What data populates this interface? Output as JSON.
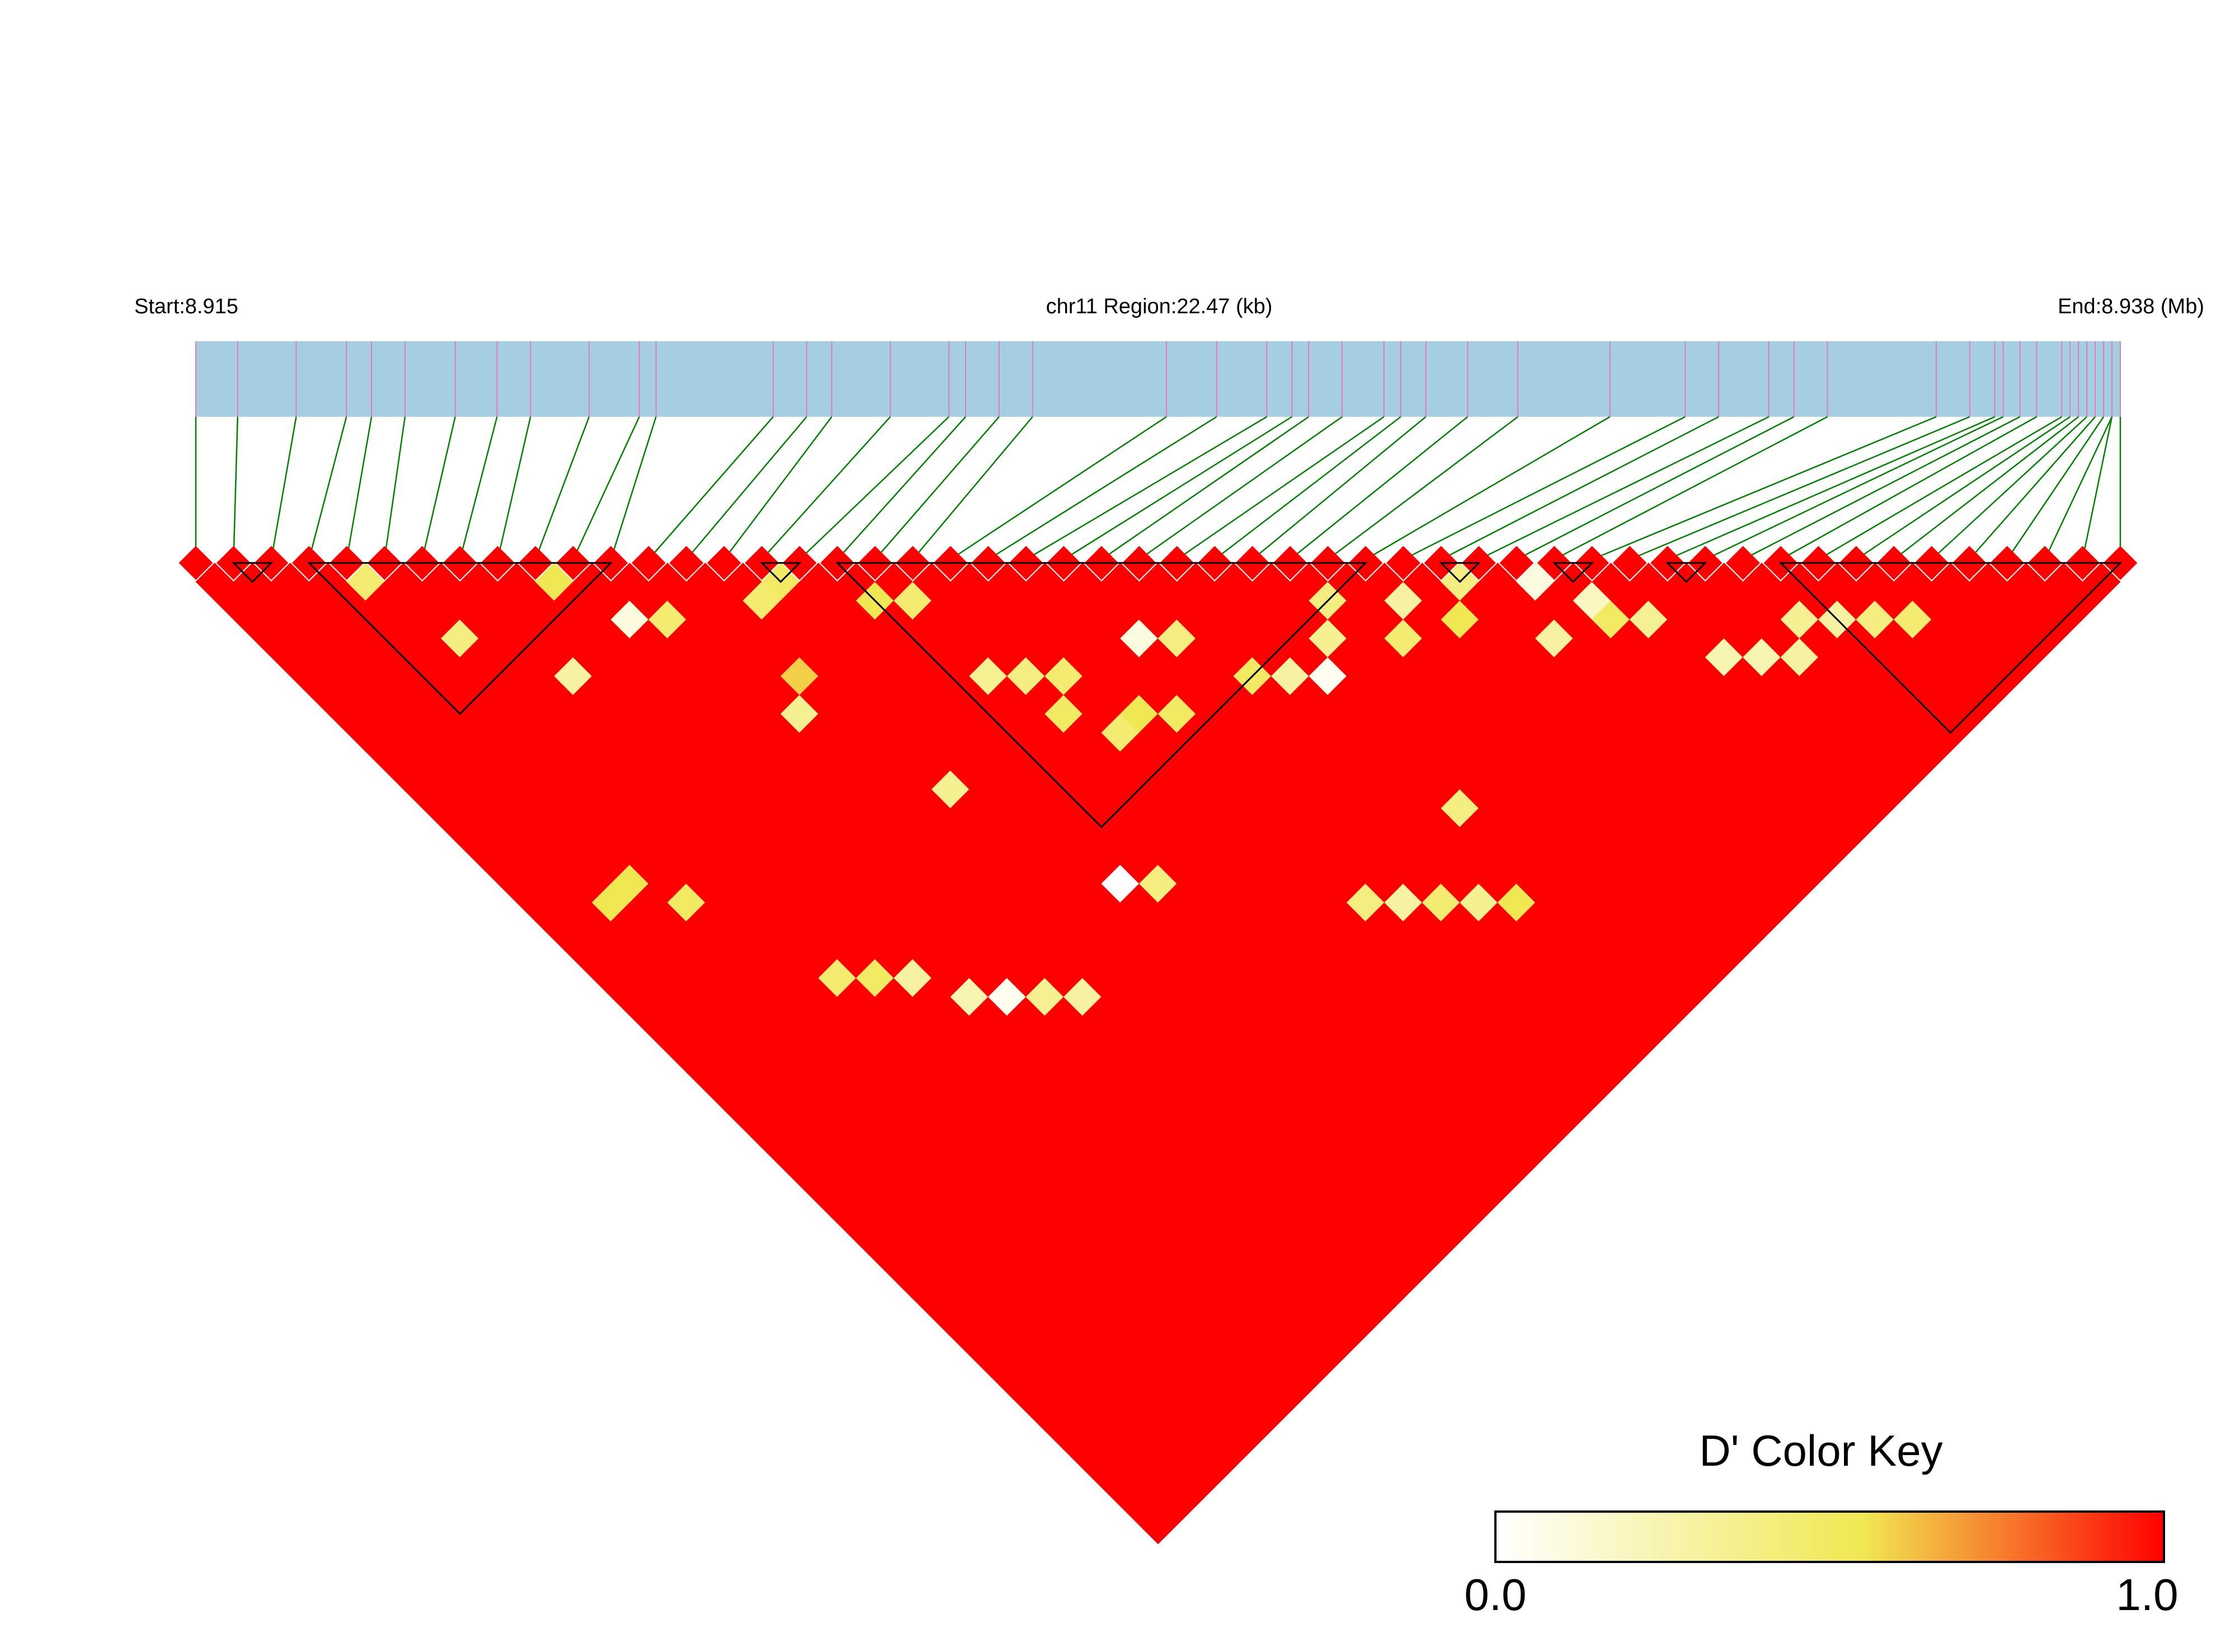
{
  "chart_data": {
    "type": "heatmap",
    "title": "",
    "start_label": "Start:8.915",
    "region_label": "chr11 Region:22.47 (kb)",
    "end_label": "End:8.938 (Mb)",
    "region_start_mb": 8.915,
    "region_end_mb": 8.938,
    "region_kb": 22.47,
    "snp_count": 52,
    "snp_positions_mb": [
      8.915,
      8.9155,
      8.9162,
      8.9168,
      8.9171,
      8.9175,
      8.9181,
      8.9186,
      8.919,
      8.9197,
      8.9203,
      8.9205,
      8.9219,
      8.9223,
      8.9226,
      8.9233,
      8.924,
      8.9242,
      8.9246,
      8.925,
      8.9266,
      8.9272,
      8.9278,
      8.9281,
      8.9283,
      8.9287,
      8.9292,
      8.9294,
      8.9297,
      8.9302,
      8.9308,
      8.9319,
      8.9328,
      8.9332,
      8.9338,
      8.9341,
      8.9345,
      8.9358,
      8.9362,
      8.9365,
      8.9366,
      8.9368,
      8.937,
      8.9373,
      8.9374,
      8.9375,
      8.9376,
      8.9377,
      8.9378,
      8.9379,
      8.9379,
      8.938
    ],
    "blocks": [
      [
        1,
        2
      ],
      [
        3,
        11
      ],
      [
        15,
        16
      ],
      [
        17,
        31
      ],
      [
        33,
        34
      ],
      [
        36,
        37
      ],
      [
        39,
        40
      ],
      [
        42,
        51
      ]
    ],
    "low_ld_pairs": [
      [
        4,
        5,
        0.45
      ],
      [
        5,
        9,
        0.4
      ],
      [
        7,
        13,
        0.3
      ],
      [
        9,
        10,
        0.55
      ],
      [
        10,
        13,
        0.1
      ],
      [
        11,
        14,
        0.45
      ],
      [
        12,
        20,
        0.35
      ],
      [
        14,
        16,
        0.45
      ],
      [
        15,
        16,
        0.5
      ],
      [
        13,
        19,
        0.6
      ],
      [
        14,
        26,
        0.35
      ],
      [
        17,
        19,
        0.55
      ],
      [
        18,
        20,
        0.45
      ],
      [
        16,
        33,
        0.0
      ],
      [
        17,
        34,
        0.4
      ],
      [
        19,
        27,
        0.5
      ],
      [
        20,
        29,
        0.45
      ],
      [
        21,
        29,
        0.55
      ],
      [
        22,
        30,
        0.5
      ],
      [
        23,
        27,
        0.1
      ],
      [
        24,
        28,
        0.4
      ],
      [
        25,
        31,
        0.5
      ],
      [
        26,
        32,
        0.3
      ],
      [
        27,
        33,
        0.05
      ],
      [
        28,
        32,
        0.35
      ],
      [
        29,
        31,
        0.4
      ],
      [
        30,
        34,
        0.45
      ],
      [
        31,
        33,
        0.3
      ],
      [
        32,
        35,
        0.55
      ],
      [
        33,
        34,
        0.4
      ],
      [
        34,
        38,
        0.3
      ],
      [
        35,
        36,
        0.1
      ],
      [
        36,
        38,
        0.2
      ],
      [
        37,
        40,
        0.35
      ],
      [
        38,
        43,
        0.25
      ],
      [
        39,
        44,
        0.25
      ],
      [
        40,
        45,
        0.3
      ],
      [
        41,
        44,
        0.35
      ],
      [
        42,
        45,
        0.3
      ],
      [
        43,
        46,
        0.4
      ],
      [
        44,
        47,
        0.45
      ],
      [
        36,
        39,
        0.5
      ],
      [
        8,
        30,
        0.3
      ],
      [
        9,
        32,
        0.25
      ],
      [
        10,
        33,
        0.05
      ],
      [
        11,
        34,
        0.35
      ],
      [
        12,
        35,
        0.3
      ],
      [
        22,
        40,
        0.4
      ],
      [
        23,
        41,
        0.3
      ],
      [
        24,
        42,
        0.45
      ],
      [
        25,
        43,
        0.35
      ],
      [
        26,
        44,
        0.55
      ],
      [
        27,
        40,
        0.4
      ],
      [
        6,
        28,
        0.45
      ],
      [
        7,
        29,
        0.5
      ],
      [
        3,
        20,
        0.55
      ],
      [
        4,
        22,
        0.5
      ],
      [
        2,
        20,
        0.55
      ],
      [
        18,
        24,
        0.35
      ],
      [
        19,
        25,
        0.4
      ],
      [
        20,
        26,
        0.45
      ]
    ],
    "legend": {
      "title": "D' Color Key",
      "min_label": "0.0",
      "max_label": "1.0",
      "gradient_colors": [
        "#ffffff",
        "#f0e852",
        "#ff0000"
      ]
    }
  }
}
